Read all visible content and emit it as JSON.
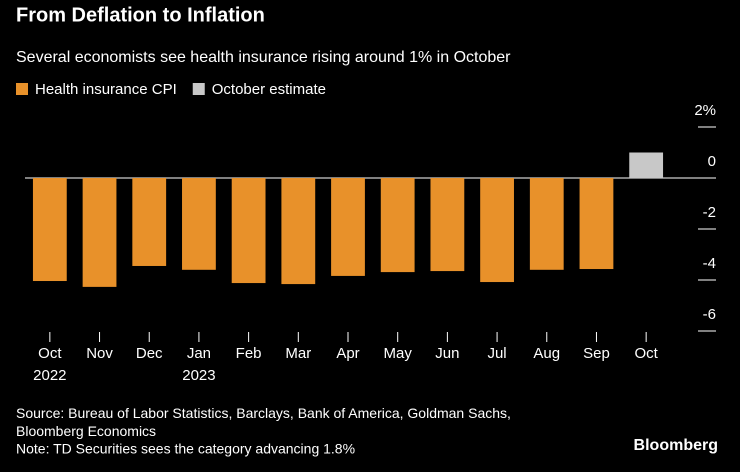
{
  "chart_data": {
    "type": "bar",
    "title": "From Deflation to Inflation",
    "subtitle": "Several economists see health insurance rising around 1% in October",
    "categories": [
      "Oct",
      "Nov",
      "Dec",
      "Jan",
      "Feb",
      "Mar",
      "Apr",
      "May",
      "Jun",
      "Jul",
      "Aug",
      "Sep",
      "Oct"
    ],
    "x_sublabels": [
      "2022",
      null,
      null,
      "2023",
      null,
      null,
      null,
      null,
      null,
      null,
      null,
      null,
      null
    ],
    "series": [
      {
        "name": "Health insurance CPI",
        "color": "#e8912a",
        "values": [
          -4.04,
          -4.27,
          -3.45,
          -3.6,
          -4.12,
          -4.16,
          -3.84,
          -3.69,
          -3.65,
          -4.08,
          -3.6,
          -3.57,
          null
        ]
      },
      {
        "name": "October estimate",
        "color": "#c8c8c8",
        "values": [
          null,
          null,
          null,
          null,
          null,
          null,
          null,
          null,
          null,
          null,
          null,
          null,
          1.0
        ]
      }
    ],
    "ylim": [
      -6,
      2
    ],
    "yticks": [
      {
        "value": 2,
        "label": "2%"
      },
      0,
      -2,
      -4,
      -6
    ],
    "source": "Source: Bureau of Labor Statistics, Barclays, Bank of America, Goldman Sachs, Bloomberg Economics",
    "note": "Note: TD Securities sees the category advancing 1.8%",
    "brand": "Bloomberg"
  }
}
